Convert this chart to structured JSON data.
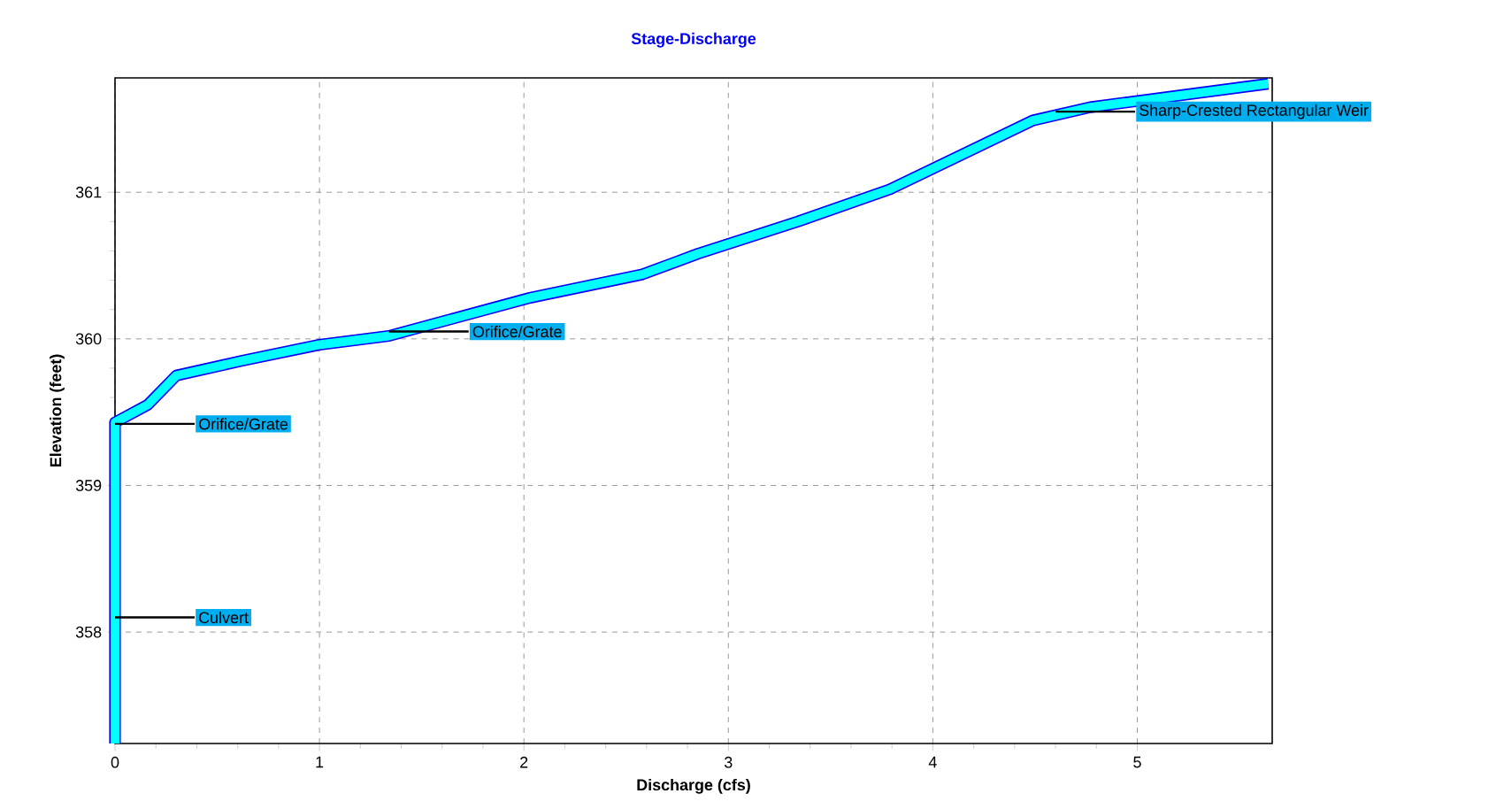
{
  "chart_data": {
    "type": "line",
    "title": "Stage-Discharge",
    "xlabel": "Discharge  (cfs)",
    "ylabel": "Elevation  (feet)",
    "x": [
      0,
      0,
      0.16,
      0.3,
      0.62,
      1.0,
      1.34,
      2.03,
      2.58,
      2.85,
      3.34,
      3.79,
      4.49,
      4.77,
      5.64
    ],
    "series": [
      {
        "color": "#00ffff",
        "values": [
          357.24,
          359.43,
          359.55,
          359.75,
          359.85,
          359.96,
          360.02,
          360.28,
          360.44,
          360.58,
          360.8,
          361.02,
          361.49,
          361.58,
          361.74
        ]
      }
    ],
    "xlim": [
      0,
      5.66
    ],
    "ylim": [
      357.24,
      361.78
    ],
    "xticks": [
      0,
      1,
      2,
      3,
      4,
      5
    ],
    "yticks": [
      358,
      359,
      360,
      361
    ],
    "grid": true,
    "line_style": "solid",
    "marker": "none",
    "annotations": [
      {
        "text": "Culvert",
        "x": 0,
        "y": 358.1
      },
      {
        "text": "Orifice/Grate",
        "x": 0,
        "y": 359.42
      },
      {
        "text": "Orifice/Grate",
        "x": 1.34,
        "y": 360.05
      },
      {
        "text": "Sharp-Crested Rectangular Weir",
        "x": 4.6,
        "y": 361.55
      }
    ]
  }
}
